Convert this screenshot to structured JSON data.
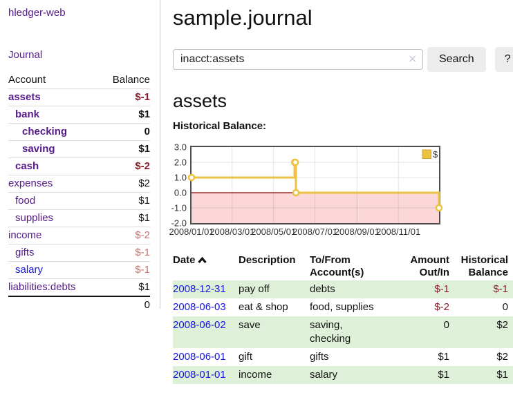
{
  "app": {
    "brand": "hledger-web",
    "nav_journal": "Journal"
  },
  "sidebar": {
    "account_header": "Account",
    "balance_header": "Balance",
    "accounts": [
      {
        "name": "assets",
        "indent": 1,
        "bold": true,
        "balance": "$-1",
        "balance_style": "neg-strong",
        "link_style": "visited"
      },
      {
        "name": "bank",
        "indent": 2,
        "bold": true,
        "balance": "$1",
        "balance_style": "pos",
        "link_style": "visited"
      },
      {
        "name": "checking",
        "indent": 3,
        "bold": true,
        "balance": "0",
        "balance_style": "pos",
        "link_style": "visited"
      },
      {
        "name": "saving",
        "indent": 3,
        "bold": true,
        "balance": "$1",
        "balance_style": "pos",
        "link_style": "visited"
      },
      {
        "name": "cash",
        "indent": 2,
        "bold": true,
        "balance": "$-2",
        "balance_style": "neg-strong",
        "link_style": "visited"
      },
      {
        "name": "expenses",
        "indent": 1,
        "bold": false,
        "balance": "$2",
        "balance_style": "pos",
        "link_style": "visited"
      },
      {
        "name": "food",
        "indent": 2,
        "bold": false,
        "balance": "$1",
        "balance_style": "pos",
        "link_style": "visited"
      },
      {
        "name": "supplies",
        "indent": 2,
        "bold": false,
        "balance": "$1",
        "balance_style": "pos",
        "link_style": "visited"
      },
      {
        "name": "income",
        "indent": 1,
        "bold": false,
        "balance": "$-2",
        "balance_style": "neg-soft",
        "link_style": "visited"
      },
      {
        "name": "gifts",
        "indent": 2,
        "bold": false,
        "balance": "$-1",
        "balance_style": "neg-soft",
        "link_style": "visited"
      },
      {
        "name": "salary",
        "indent": 2,
        "bold": false,
        "balance": "$-1",
        "balance_style": "neg-soft",
        "link_style": "unvisited"
      },
      {
        "name": "liabilities:debts",
        "indent": 1,
        "bold": false,
        "balance": "$1",
        "balance_style": "pos",
        "link_style": "visited"
      }
    ],
    "total": "0"
  },
  "header": {
    "title": "sample.journal"
  },
  "search": {
    "value": "inacct:assets",
    "clear_icon": "✕",
    "button_label": "Search",
    "help_label": "?"
  },
  "account_page": {
    "heading": "assets",
    "chart_label": "Historical Balance:"
  },
  "chart_data": {
    "type": "line",
    "title": "Historical Balance",
    "step": true,
    "series": [
      {
        "name": "$",
        "color": "#edc240",
        "points": [
          [
            "2008-01-01",
            1
          ],
          [
            "2008-06-01",
            2
          ],
          [
            "2008-06-02",
            2
          ],
          [
            "2008-06-03",
            0
          ],
          [
            "2008-12-31",
            -1
          ]
        ]
      }
    ],
    "x_range": [
      "2008-01-01",
      "2008-12-31"
    ],
    "x_tick_labels": [
      "2008/01/01",
      "2008/03/01",
      "2008/05/01",
      "2008/07/01",
      "2008/09/01",
      "2008/11/01"
    ],
    "y_ticks": [
      3.0,
      2.0,
      1.0,
      0.0,
      -1.0,
      -2.0
    ],
    "ylim": [
      -2,
      3
    ],
    "grid": true,
    "legend_position": "top-right",
    "negative_region_fill": "#fbd7d7",
    "zero_line_color": "#8b0000"
  },
  "register": {
    "headers": {
      "date": "Date",
      "description": "Description",
      "accounts": "To/From Account(s)",
      "amount": "Amount Out/In",
      "balance": "Historical Balance"
    },
    "rows": [
      {
        "date": "2008-12-31",
        "description": "pay off",
        "accounts": "debts",
        "amount": "$-1",
        "amount_negative": true,
        "balance": "$-1",
        "balance_negative": true
      },
      {
        "date": "2008-06-03",
        "description": "eat & shop",
        "accounts": "food, supplies",
        "amount": "$-2",
        "amount_negative": true,
        "balance": "0",
        "balance_negative": false
      },
      {
        "date": "2008-06-02",
        "description": "save",
        "accounts": "saving,\nchecking",
        "amount": "0",
        "amount_negative": false,
        "balance": "$2",
        "balance_negative": false
      },
      {
        "date": "2008-06-01",
        "description": "gift",
        "accounts": "gifts",
        "amount": "$1",
        "amount_negative": false,
        "balance": "$2",
        "balance_negative": false
      },
      {
        "date": "2008-01-01",
        "description": "income",
        "accounts": "salary",
        "amount": "$1",
        "amount_negative": false,
        "balance": "$1",
        "balance_negative": false
      }
    ]
  },
  "colors": {
    "link_purple": "#561a8b",
    "link_blue": "#1515e6",
    "negative_strong": "#8b1a26",
    "negative_soft": "#c4716c",
    "row_stripe_green": "#dff0d8",
    "chart_series_yellow": "#edc240",
    "chart_negative_fill": "#fbd7d7",
    "chart_zero_line": "#8b0000",
    "button_gray": "#ececec"
  }
}
